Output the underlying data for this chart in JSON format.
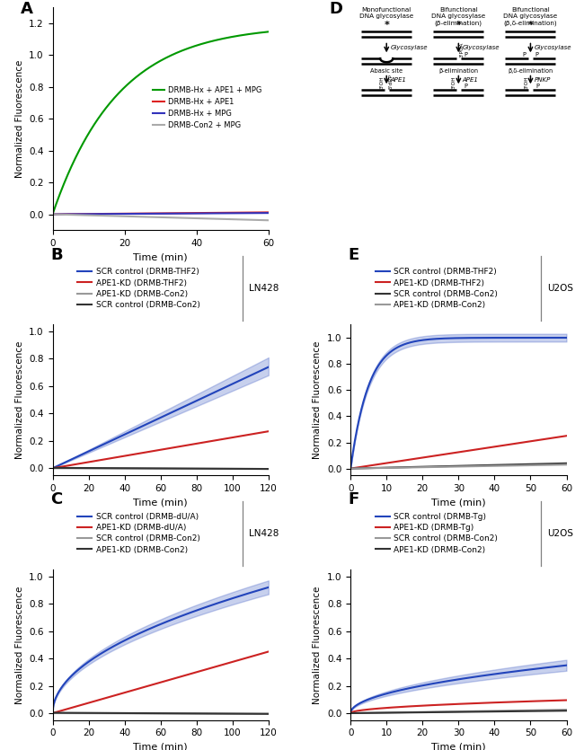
{
  "panel_A": {
    "xlabel": "Time (min)",
    "ylabel": "Normalized Fluorescence",
    "xlim": [
      0,
      60
    ],
    "ylim": [
      -0.1,
      1.3
    ],
    "yticks": [
      0.0,
      0.2,
      0.4,
      0.6,
      0.8,
      1.0,
      1.2
    ],
    "xticks": [
      0,
      20,
      40,
      60
    ]
  },
  "panel_B": {
    "xlabel": "Time (min)",
    "ylabel": "Normalized Fluorescence",
    "xlim": [
      0,
      120
    ],
    "ylim": [
      -0.05,
      1.05
    ],
    "yticks": [
      0.0,
      0.2,
      0.4,
      0.6,
      0.8,
      1.0
    ],
    "xticks": [
      0,
      20,
      40,
      60,
      80,
      100,
      120
    ],
    "cell_label": "LN428",
    "legend": [
      "SCR control (DRMB-THF2)",
      "APE1-KD (DRMB-THF2)",
      "APE1-KD (DRMB-Con2)",
      "SCR control (DRMB-Con2)"
    ]
  },
  "panel_C": {
    "xlabel": "Time (min)",
    "ylabel": "Normalized Fluorescence",
    "xlim": [
      0,
      120
    ],
    "ylim": [
      -0.05,
      1.05
    ],
    "yticks": [
      0.0,
      0.2,
      0.4,
      0.6,
      0.8,
      1.0
    ],
    "xticks": [
      0,
      20,
      40,
      60,
      80,
      100,
      120
    ],
    "cell_label": "LN428",
    "legend": [
      "SCR control (DRMB-dU/A)",
      "APE1-KD (DRMB-dU/A)",
      "SCR control (DRMB-Con2)",
      "APE1-KD (DRMB-Con2)"
    ]
  },
  "panel_E": {
    "xlabel": "Time (min)",
    "ylabel": "Normalized Fluorescence",
    "xlim": [
      0,
      60
    ],
    "ylim": [
      -0.05,
      1.1
    ],
    "yticks": [
      0.0,
      0.2,
      0.4,
      0.6,
      0.8,
      1.0
    ],
    "xticks": [
      0,
      10,
      20,
      30,
      40,
      50,
      60
    ],
    "cell_label": "U2OS",
    "legend": [
      "SCR control (DRMB-THF2)",
      "APE1-KD (DRMB-THF2)",
      "SCR control (DRMB-Con2)",
      "APE1-KD (DRMB-Con2)"
    ]
  },
  "panel_F": {
    "xlabel": "Time (min)",
    "ylabel": "Normalized Fluorescence",
    "xlim": [
      0,
      60
    ],
    "ylim": [
      -0.05,
      1.05
    ],
    "yticks": [
      0.0,
      0.2,
      0.4,
      0.6,
      0.8,
      1.0
    ],
    "xticks": [
      0,
      10,
      20,
      30,
      40,
      50,
      60
    ],
    "cell_label": "U2OS",
    "legend": [
      "SCR control (DRMB-Tg)",
      "APE1-KD (DRMB-Tg)",
      "SCR control (DRMB-Con2)",
      "APE1-KD (DRMB-Con2)"
    ]
  },
  "colors": {
    "blue": "#2244bb",
    "red": "#cc2222",
    "gray": "#999999",
    "dark": "#333333",
    "green": "#009900",
    "red_A": "#dd2222",
    "blue_A": "#3333bb",
    "gray_A": "#aaaaaa"
  }
}
